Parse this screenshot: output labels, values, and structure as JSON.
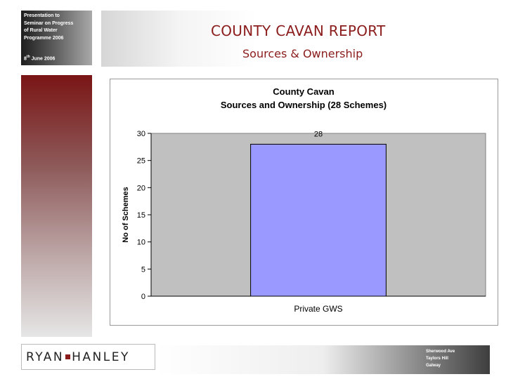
{
  "presentation": {
    "lines": [
      "Presentation to",
      "Seminar on Progress",
      "of Rural Water",
      "Programme 2006"
    ],
    "date": "8th June 2006"
  },
  "header": {
    "title": "COUNTY CAVAN REPORT",
    "subtitle": "Sources & Ownership"
  },
  "logo": {
    "left": "RYAN",
    "right": "HANLEY"
  },
  "address": [
    "Sherwood House",
    "Sherwood Ave",
    "Taylors Hill",
    "Galway"
  ],
  "colors": {
    "accent": "#8b1c1c",
    "bar": "#9999ff",
    "plot_bg": "#c0c0c0"
  },
  "chart_data": {
    "type": "bar",
    "title": "County Cavan",
    "subtitle": "Sources and Ownership (28 Schemes)",
    "categories": [
      "Private GWS"
    ],
    "values": [
      28
    ],
    "data_labels": [
      "28"
    ],
    "xlabel": "",
    "ylabel": "No of Schemes",
    "ylim": [
      0,
      30
    ],
    "yticks": [
      0,
      5,
      10,
      15,
      20,
      25,
      30
    ],
    "grid": false,
    "legend": "none"
  }
}
